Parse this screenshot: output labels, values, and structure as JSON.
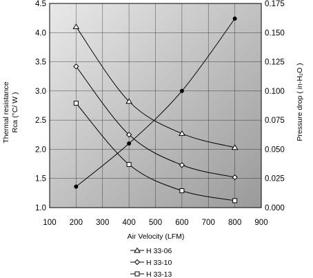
{
  "chart_data": {
    "type": "line",
    "title": "",
    "xlabel": "Air Velocity (LFM)",
    "ylabel_left_line1": "Thermal resistance",
    "ylabel_left_line2": "Rca (°C/ W )",
    "ylabel_right": "Pressure drop   ( in-H₂O )",
    "xlim": [
      100,
      900
    ],
    "ylim_left": [
      1.0,
      4.5
    ],
    "ylim_right": [
      0.0,
      0.175
    ],
    "x_ticks": [
      "100",
      "200",
      "300",
      "400",
      "500",
      "600",
      "700",
      "800",
      "900"
    ],
    "y_left_ticks": [
      "1.0",
      "1.5",
      "2.0",
      "2.5",
      "3.0",
      "3.5",
      "4.0",
      "4.5"
    ],
    "y_right_ticks": [
      "0.000",
      "0.025",
      "0.050",
      "0.075",
      "0.100",
      "0.125",
      "0.150",
      "0.175"
    ],
    "grid": true,
    "legend_position": "bottom-center",
    "background_gradient": [
      "#e9e9e9",
      "#9a9a9a"
    ],
    "series": [
      {
        "name": "H 33-06",
        "axis": "left",
        "marker": "triangle",
        "x": [
          200,
          400,
          600,
          800
        ],
        "y": [
          4.1,
          2.82,
          2.27,
          2.03
        ]
      },
      {
        "name": "H 33-10",
        "axis": "left",
        "marker": "diamond",
        "x": [
          200,
          400,
          600,
          800
        ],
        "y": [
          3.42,
          2.25,
          1.73,
          1.52
        ]
      },
      {
        "name": "H 33-13",
        "axis": "left",
        "marker": "square",
        "x": [
          200,
          400,
          600,
          800
        ],
        "y": [
          2.79,
          1.74,
          1.29,
          1.12
        ]
      },
      {
        "axis": "right",
        "marker": "filled-circle",
        "x": [
          200,
          400,
          600,
          800
        ],
        "y": [
          0.018,
          0.055,
          0.1,
          0.162
        ]
      }
    ]
  }
}
